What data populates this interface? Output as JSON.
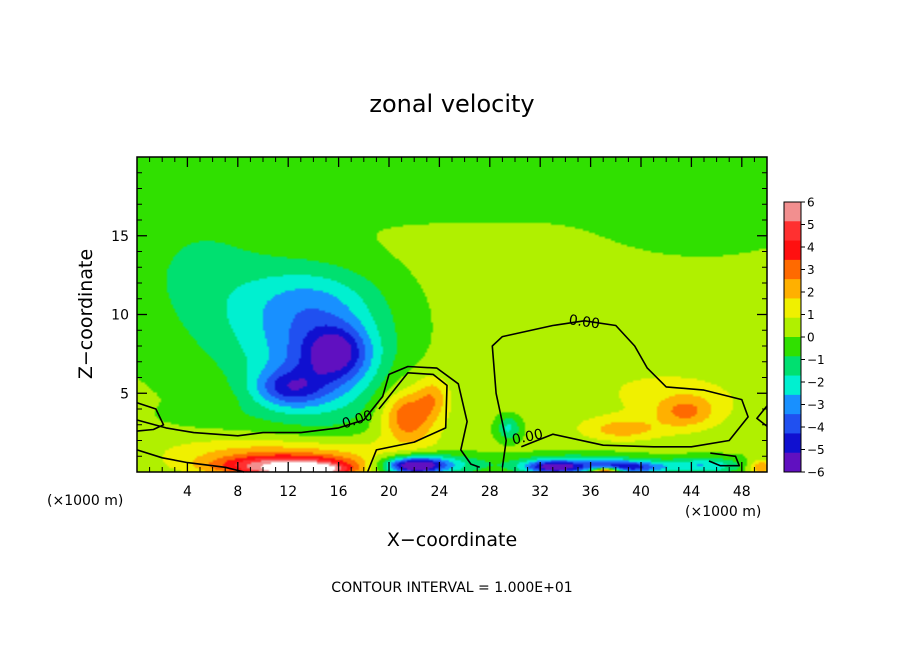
{
  "chart_data": {
    "type": "heatmap",
    "title": "zonal velocity",
    "xlabel": "X−coordinate",
    "ylabel": "Z−coordinate",
    "x_unit_left": "(×1000 m)",
    "x_unit_right": "(×1000 m)",
    "footer": "CONTOUR INTERVAL = 1.000E+01",
    "xlim": [
      0,
      50
    ],
    "ylim": [
      0,
      20
    ],
    "x_ticks": [
      4,
      8,
      12,
      16,
      20,
      24,
      28,
      32,
      36,
      40,
      44,
      48
    ],
    "y_ticks": [
      5,
      10,
      15
    ],
    "x_tick_labels": [
      "4",
      "8",
      "12",
      "16",
      "20",
      "24",
      "28",
      "32",
      "36",
      "40",
      "44",
      "48"
    ],
    "y_tick_labels": [
      "5",
      "10",
      "15"
    ],
    "colorbar": {
      "min": -6,
      "max": 6,
      "tick_values": [
        6,
        5,
        4,
        3,
        2,
        1,
        0,
        -1,
        -2,
        -3,
        -4,
        -5,
        -6
      ],
      "tick_labels": [
        "6",
        "5",
        "4",
        "3",
        "2",
        "1",
        "0",
        "−1",
        "−2",
        "−3",
        "−4",
        "−5",
        "−6"
      ],
      "colors": [
        "#f28f8f",
        "#ff3030",
        "#ff1010",
        "#ff6a00",
        "#ffb000",
        "#f0f000",
        "#b0f000",
        "#30e000",
        "#00e070",
        "#00f0d0",
        "#1890ff",
        "#2050f0",
        "#1010d0",
        "#6010c0"
      ]
    },
    "contour_labels": [
      "0.00",
      "0.00",
      "0.00"
    ],
    "contour_label_positions": [
      {
        "x": 35.5,
        "z": 9.5
      },
      {
        "x": 17.5,
        "z": 3.3
      },
      {
        "x": 31.0,
        "z": 2.2
      }
    ],
    "contour_lines": [
      [
        [
          29,
          0.3
        ],
        [
          29.3,
          2
        ],
        [
          28.5,
          5
        ],
        [
          28.2,
          8
        ],
        [
          29,
          8.6
        ],
        [
          33,
          9.3
        ],
        [
          35.5,
          9.6
        ],
        [
          38,
          9.3
        ],
        [
          39.5,
          8
        ],
        [
          40.5,
          6.6
        ],
        [
          42,
          5.4
        ],
        [
          45,
          5.2
        ],
        [
          48,
          4.6
        ],
        [
          48.5,
          3.5
        ],
        [
          47,
          2.0
        ],
        [
          44,
          1.6
        ],
        [
          41,
          1.6
        ],
        [
          37,
          1.7
        ],
        [
          33,
          2.4
        ],
        [
          30.5,
          1.6
        ]
      ],
      [
        [
          0,
          3.3
        ],
        [
          2.3,
          2.8
        ],
        [
          4.5,
          2.5
        ],
        [
          8,
          2.3
        ],
        [
          10,
          2.5
        ],
        [
          13,
          2.5
        ],
        [
          16,
          2.8
        ],
        [
          18,
          3.3
        ],
        [
          19.5,
          4.8
        ],
        [
          20,
          6.2
        ],
        [
          21.5,
          6.7
        ],
        [
          23.8,
          6.6
        ],
        [
          25.5,
          5.6
        ],
        [
          26.2,
          3.2
        ],
        [
          25.7,
          1.4
        ],
        [
          26.5,
          0.5
        ],
        [
          27.2,
          0.3
        ]
      ],
      [
        [
          18.3,
          0
        ],
        [
          19,
          1.4
        ],
        [
          22,
          1.9
        ],
        [
          24.5,
          2.8
        ],
        [
          24.6,
          5.5
        ],
        [
          23.5,
          6.2
        ],
        [
          21.5,
          6.3
        ],
        [
          20.7,
          5.5
        ],
        [
          19.8,
          4.6
        ],
        [
          19.2,
          4.0
        ]
      ],
      [
        [
          0,
          4.4
        ],
        [
          1.5,
          4.0
        ],
        [
          2.1,
          3.0
        ],
        [
          1.3,
          2.7
        ],
        [
          0,
          2.6
        ]
      ],
      [
        [
          0,
          1.4
        ],
        [
          2,
          0.9
        ],
        [
          4,
          0.6
        ],
        [
          7,
          0.3
        ],
        [
          8.5,
          0
        ]
      ],
      [
        [
          45.5,
          1.2
        ],
        [
          47.5,
          1.0
        ],
        [
          47.8,
          0.4
        ],
        [
          46.3,
          0.4
        ],
        [
          45.4,
          0.7
        ]
      ],
      [
        [
          50,
          4.2
        ],
        [
          49.2,
          3.4
        ],
        [
          50,
          2.9
        ]
      ]
    ],
    "field_blobs": [
      {
        "value": 0.3,
        "x": 25,
        "z": 10,
        "rx": 30,
        "rz": 12
      },
      {
        "value": -0.7,
        "x": 25,
        "z": 19.5,
        "rx": 26,
        "rz": 3.5
      },
      {
        "value": -1.0,
        "x": 5,
        "z": 13,
        "rx": 6,
        "rz": 4
      },
      {
        "value": -0.6,
        "x": 44,
        "z": 16,
        "rx": 6,
        "rz": 2
      },
      {
        "value": 0.5,
        "x": 36,
        "z": 6,
        "rx": 9,
        "rz": 3.5
      },
      {
        "value": 0.9,
        "x": 44,
        "z": 4.4,
        "rx": 5,
        "rz": 1.8
      },
      {
        "value": 1.8,
        "x": 43.5,
        "z": 3.8,
        "rx": 2.2,
        "rz": 1
      },
      {
        "value": -1.8,
        "x": 12,
        "z": 9,
        "rx": 8,
        "rz": 4
      },
      {
        "value": -1.4,
        "x": 14,
        "z": 11,
        "rx": 5,
        "rz": 2.2
      },
      {
        "value": -2.6,
        "x": 15,
        "z": 6.5,
        "rx": 5,
        "rz": 3.5
      },
      {
        "value": -3.0,
        "x": 15.8,
        "z": 7.6,
        "rx": 2.4,
        "rz": 1.6
      },
      {
        "value": -2.9,
        "x": 12,
        "z": 5.3,
        "rx": 2.8,
        "rz": 1.2
      },
      {
        "value": 1.0,
        "x": 21.6,
        "z": 3.8,
        "rx": 2.8,
        "rz": 2.6
      },
      {
        "value": 2.4,
        "x": 21.5,
        "z": 3.5,
        "rx": 2.0,
        "rz": 1.5
      },
      {
        "value": 1.5,
        "x": 23.5,
        "z": 4.8,
        "rx": 1.2,
        "rz": 1.2
      },
      {
        "value": 1.8,
        "x": 38.5,
        "z": 2.7,
        "rx": 3,
        "rz": 0.7
      },
      {
        "value": -0.4,
        "x": 7.5,
        "z": 3.6,
        "rx": 4.5,
        "rz": 0.8
      },
      {
        "value": 1.1,
        "x": 11,
        "z": 1.6,
        "rx": 10,
        "rz": 0.8
      },
      {
        "value": 2.4,
        "x": 12,
        "z": 0.7,
        "rx": 8,
        "rz": 0.8
      },
      {
        "value": 4.6,
        "x": 12,
        "z": 0.3,
        "rx": 5.5,
        "rz": 0.6
      },
      {
        "value": 5.6,
        "x": 13.5,
        "z": 0.1,
        "rx": 2.5,
        "rz": 0.35
      },
      {
        "value": -3.0,
        "x": 23,
        "z": 0.5,
        "rx": 4.2,
        "rz": 0.7
      },
      {
        "value": -5.0,
        "x": 22,
        "z": 0.4,
        "rx": 2.2,
        "rz": 0.5
      },
      {
        "value": -2.2,
        "x": 29.5,
        "z": 2.8,
        "rx": 1,
        "rz": 0.8
      },
      {
        "value": -2.6,
        "x": 35,
        "z": 0.5,
        "rx": 5,
        "rz": 0.6
      },
      {
        "value": -4.4,
        "x": 33,
        "z": 0.3,
        "rx": 2.2,
        "rz": 0.4
      },
      {
        "value": -4.0,
        "x": 39,
        "z": 0.3,
        "rx": 3,
        "rz": 0.4
      },
      {
        "value": 6.0,
        "x": 37.2,
        "z": 0.05,
        "rx": 1.2,
        "rz": 0.25
      },
      {
        "value": -2.6,
        "x": 45,
        "z": 0.4,
        "rx": 3,
        "rz": 0.5
      },
      {
        "value": 2.6,
        "x": 49.5,
        "z": 0.3,
        "rx": 1,
        "rz": 0.5
      }
    ]
  }
}
